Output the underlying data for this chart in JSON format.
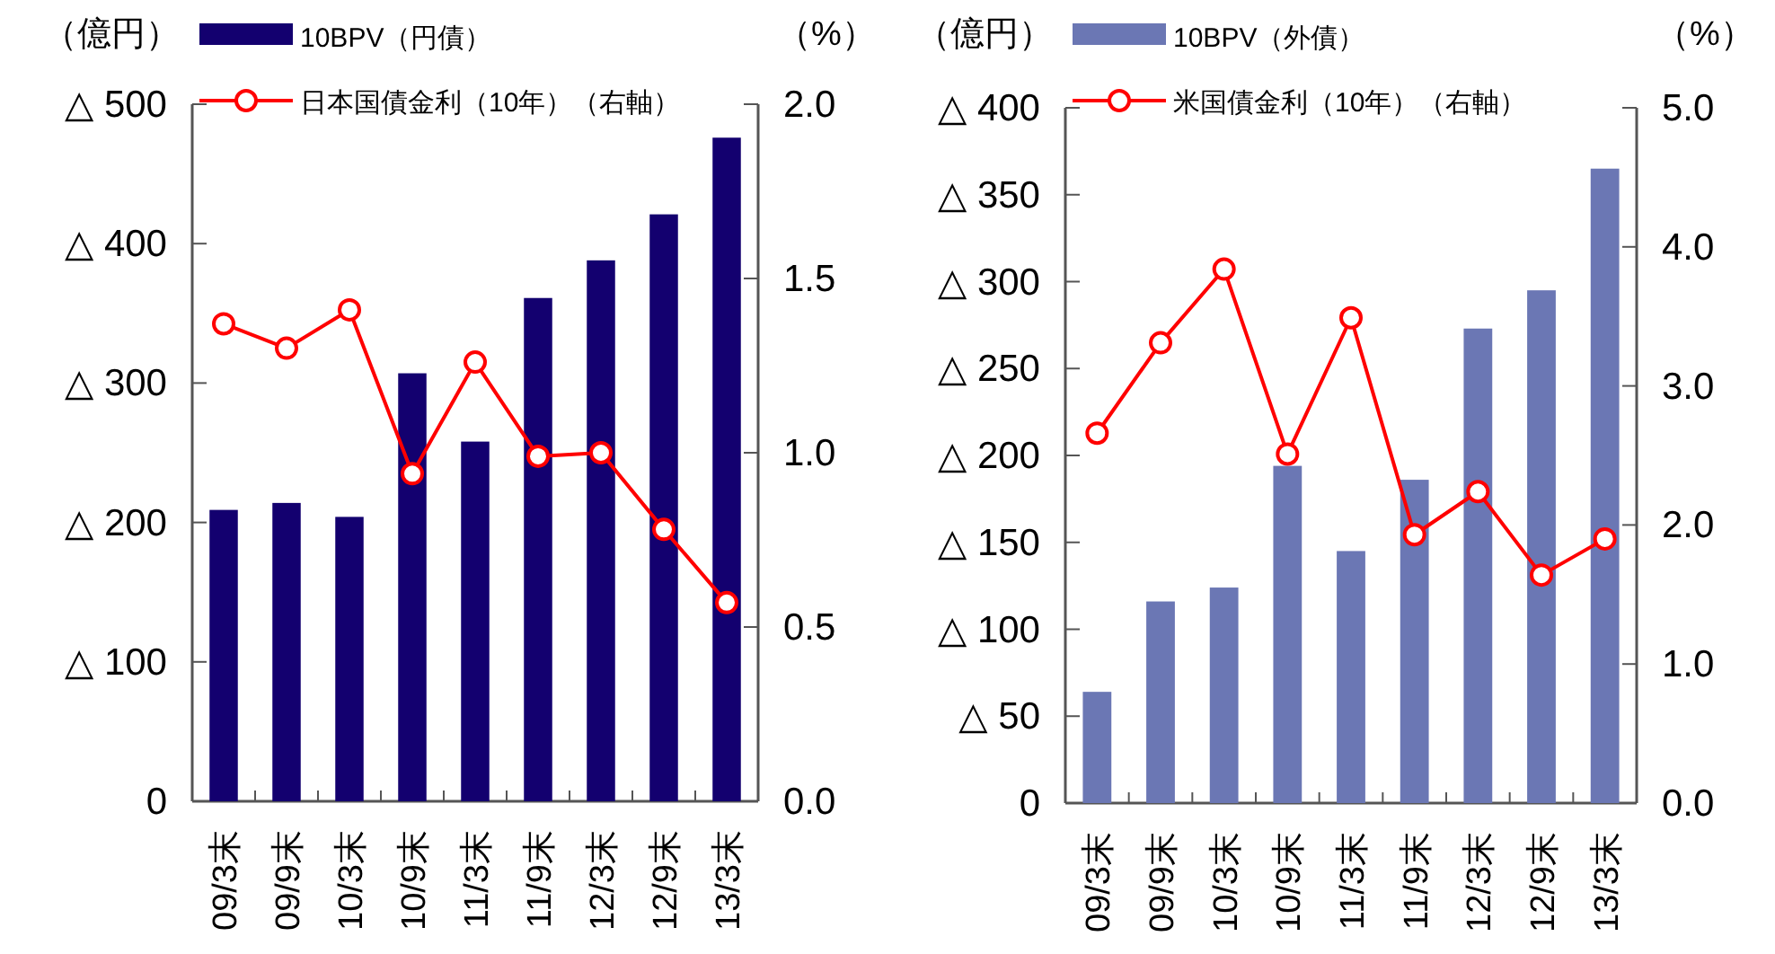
{
  "chart_data": [
    {
      "type": "bar",
      "ylabel": "（億円）",
      "y2label": "（%）",
      "legend": "top left",
      "grid": false,
      "marker": "circle",
      "categories": [
        "09/3末",
        "09/9末",
        "10/3末",
        "10/9末",
        "11/3末",
        "11/9末",
        "12/3末",
        "12/9末",
        "13/3末"
      ],
      "ylim": [
        0,
        500
      ],
      "yticks": [
        0,
        {
          "value": 100,
          "label": "△ 100"
        },
        {
          "value": 200,
          "label": "△ 200"
        },
        {
          "value": 300,
          "label": "△ 300"
        },
        {
          "value": 400,
          "label": "△ 400"
        },
        {
          "value": 500,
          "label": "△ 500"
        }
      ],
      "y2lim": [
        0,
        2
      ],
      "y2ticks": [
        {
          "value": 0,
          "label": "0.0"
        },
        {
          "value": 0.5,
          "label": "0.5"
        },
        {
          "value": 1,
          "label": "1.0"
        },
        {
          "value": 1.5,
          "label": "1.5"
        },
        {
          "value": 2,
          "label": "2.0"
        }
      ],
      "series": [
        {
          "name": "10BPV（円債）",
          "color": "#13006f",
          "values": [
            209,
            214,
            204,
            307,
            258,
            361,
            388,
            421,
            476
          ]
        },
        {
          "name": "日本国債金利（10年）（右軸）",
          "type": "line",
          "axis": "y2",
          "color": "#ff0000",
          "values": [
            1.37,
            1.3,
            1.41,
            0.94,
            1.26,
            0.99,
            1.0,
            0.78,
            0.57
          ]
        }
      ]
    },
    {
      "type": "bar",
      "ylabel": "（億円）",
      "y2label": "（%）",
      "legend": "top left",
      "grid": false,
      "marker": "circle",
      "categories": [
        "09/3末",
        "09/9末",
        "10/3末",
        "10/9末",
        "11/3末",
        "11/9末",
        "12/3末",
        "12/9末",
        "13/3末"
      ],
      "ylim": [
        0,
        400
      ],
      "yticks": [
        0,
        {
          "value": 50,
          "label": "△ 50"
        },
        {
          "value": 100,
          "label": "△ 100"
        },
        {
          "value": 150,
          "label": "△ 150"
        },
        {
          "value": 200,
          "label": "△ 200"
        },
        {
          "value": 250,
          "label": "△ 250"
        },
        {
          "value": 300,
          "label": "△ 300"
        },
        {
          "value": 350,
          "label": "△ 350"
        },
        {
          "value": 400,
          "label": "△ 400"
        }
      ],
      "y2lim": [
        0,
        5
      ],
      "y2ticks": [
        {
          "value": 0,
          "label": "0.0"
        },
        {
          "value": 1,
          "label": "1.0"
        },
        {
          "value": 2,
          "label": "2.0"
        },
        {
          "value": 3,
          "label": "3.0"
        },
        {
          "value": 4,
          "label": "4.0"
        },
        {
          "value": 5,
          "label": "5.0"
        }
      ],
      "series": [
        {
          "name": "10BPV（外債）",
          "color": "#6b77b4",
          "values": [
            64,
            116,
            124,
            194,
            145,
            186,
            273,
            295,
            365
          ]
        },
        {
          "name": "米国債金利（10年）（右軸）",
          "type": "line",
          "axis": "y2",
          "color": "#ff0000",
          "values": [
            2.66,
            3.31,
            3.84,
            2.51,
            3.49,
            1.93,
            2.24,
            1.64,
            1.9
          ]
        }
      ]
    }
  ]
}
